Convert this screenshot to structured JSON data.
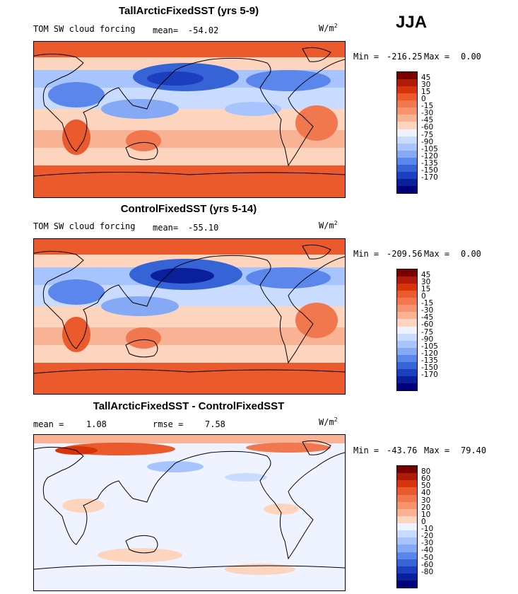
{
  "season": "JJA",
  "unit_main": "W/m",
  "unit_sup": "2",
  "panels": [
    {
      "title": "TallArcticFixedSST (yrs 5-9)",
      "variable": "TOM SW cloud forcing",
      "mean_label": "mean=",
      "mean_value": "-54.02",
      "min_label": "Min =",
      "min_value": "-216.25",
      "max_label": "Max =",
      "max_value": "0.00",
      "colorbar_levels": [
        "45",
        "30",
        "15",
        "0",
        "-15",
        "-30",
        "-45",
        "-60",
        "-75",
        "-90",
        "-105",
        "-120",
        "-135",
        "-150",
        "-170"
      ]
    },
    {
      "title": "ControlFixedSST (yrs 5-14)",
      "variable": "TOM SW cloud forcing",
      "mean_label": "mean=",
      "mean_value": "-55.10",
      "min_label": "Min =",
      "min_value": "-209.56",
      "max_label": "Max =",
      "max_value": "0.00",
      "colorbar_levels": [
        "45",
        "30",
        "15",
        "0",
        "-15",
        "-30",
        "-45",
        "-60",
        "-75",
        "-90",
        "-105",
        "-120",
        "-135",
        "-150",
        "-170"
      ]
    },
    {
      "title": "TallArcticFixedSST - ControlFixedSST",
      "mean_label": "mean =",
      "mean_value": "1.08",
      "rmse_label": "rmse =",
      "rmse_value": "7.58",
      "min_label": "Min =",
      "min_value": "-43.76",
      "max_label": "Max =",
      "max_value": "79.40",
      "colorbar_levels": [
        "80",
        "60",
        "50",
        "40",
        "30",
        "20",
        "10",
        "0",
        "-10",
        "-20",
        "-30",
        "-40",
        "-50",
        "-60",
        "-80"
      ]
    }
  ],
  "colors": {
    "scale": [
      "#7a0000",
      "#b01a08",
      "#d8340c",
      "#ea5a2c",
      "#f0774e",
      "#f5946f",
      "#f9b394",
      "#fdd5bf",
      "#eef3ff",
      "#c9dcff",
      "#a8c4ff",
      "#86a9f5",
      "#5b86ec",
      "#3663d6",
      "#1b3fbf",
      "#0a1f9a",
      "#00007a"
    ],
    "land_line": "#000000"
  }
}
